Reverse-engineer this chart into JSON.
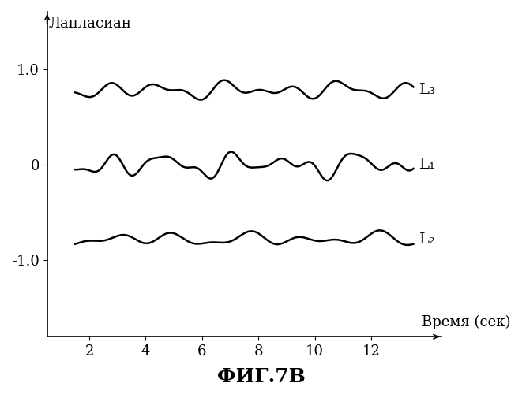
{
  "title": "ФИГ.7В",
  "ylabel": "Лапласиан",
  "xlabel": "Время (сек)",
  "xlim": [
    0.5,
    14.5
  ],
  "ylim": [
    -1.8,
    1.6
  ],
  "x_ticks": [
    2,
    4,
    6,
    8,
    10,
    12
  ],
  "y_ticks": [
    -1.0,
    0,
    1.0
  ],
  "y_tick_labels": [
    "-1.0",
    "0",
    "1.0"
  ],
  "line_color": "#000000",
  "background_color": "#ffffff",
  "L3_label": "L₃",
  "L1_label": "L₁",
  "L2_label": "L₂",
  "L3_base": 0.78,
  "L1_base": 0.0,
  "L2_base": -0.78,
  "line_width": 1.8,
  "title_fontsize": 18,
  "label_fontsize": 13,
  "annotation_fontsize": 14
}
